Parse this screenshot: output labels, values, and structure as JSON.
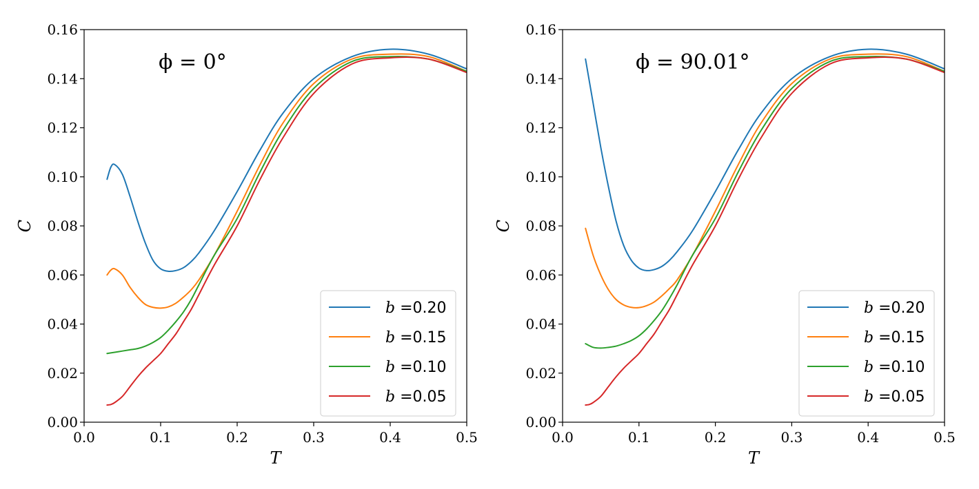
{
  "chart_data": [
    {
      "type": "line",
      "annotation": "ϕ = 0°",
      "xlabel": "T",
      "ylabel": "C",
      "xlim": [
        0.0,
        0.5
      ],
      "ylim": [
        0.0,
        0.16
      ],
      "xticks": [
        "0.0",
        "0.1",
        "0.2",
        "0.3",
        "0.4",
        "0.5"
      ],
      "yticks": [
        "0.00",
        "0.02",
        "0.04",
        "0.06",
        "0.08",
        "0.10",
        "0.12",
        "0.14",
        "0.16"
      ],
      "grid": false,
      "legend_position": "lower-right",
      "series": [
        {
          "name": "b =0.20",
          "var": "b",
          "label": " =0.20",
          "color": "#1f77b4",
          "x": [
            0.03,
            0.035,
            0.04,
            0.05,
            0.06,
            0.07,
            0.08,
            0.09,
            0.1,
            0.11,
            0.12,
            0.13,
            0.14,
            0.15,
            0.17,
            0.2,
            0.23,
            0.26,
            0.3,
            0.35,
            0.4,
            0.45,
            0.5
          ],
          "y": [
            0.099,
            0.104,
            0.105,
            0.101,
            0.092,
            0.082,
            0.073,
            0.066,
            0.0625,
            0.0615,
            0.0618,
            0.063,
            0.0655,
            0.069,
            0.078,
            0.094,
            0.111,
            0.126,
            0.14,
            0.149,
            0.152,
            0.15,
            0.144
          ]
        },
        {
          "name": "b =0.15",
          "var": "b",
          "label": " =0.15",
          "color": "#ff7f0e",
          "x": [
            0.03,
            0.035,
            0.04,
            0.05,
            0.06,
            0.07,
            0.08,
            0.09,
            0.1,
            0.11,
            0.12,
            0.13,
            0.14,
            0.15,
            0.17,
            0.2,
            0.23,
            0.26,
            0.3,
            0.35,
            0.4,
            0.45,
            0.5
          ],
          "y": [
            0.06,
            0.062,
            0.0625,
            0.06,
            0.055,
            0.051,
            0.048,
            0.0468,
            0.0465,
            0.047,
            0.0485,
            0.051,
            0.054,
            0.058,
            0.068,
            0.086,
            0.105,
            0.122,
            0.138,
            0.148,
            0.15,
            0.149,
            0.143
          ]
        },
        {
          "name": "b =0.10",
          "var": "b",
          "label": " =0.10",
          "color": "#2ca02c",
          "x": [
            0.03,
            0.04,
            0.05,
            0.06,
            0.07,
            0.08,
            0.09,
            0.1,
            0.11,
            0.12,
            0.13,
            0.14,
            0.15,
            0.17,
            0.2,
            0.23,
            0.26,
            0.3,
            0.35,
            0.4,
            0.45,
            0.5
          ],
          "y": [
            0.028,
            0.0285,
            0.029,
            0.0295,
            0.03,
            0.031,
            0.0325,
            0.0345,
            0.0375,
            0.041,
            0.045,
            0.05,
            0.056,
            0.068,
            0.083,
            0.102,
            0.119,
            0.136,
            0.147,
            0.149,
            0.148,
            0.143
          ]
        },
        {
          "name": "b =0.05",
          "var": "b",
          "label": " =0.05",
          "color": "#d62728",
          "x": [
            0.03,
            0.035,
            0.04,
            0.05,
            0.06,
            0.07,
            0.08,
            0.09,
            0.1,
            0.11,
            0.12,
            0.13,
            0.14,
            0.15,
            0.17,
            0.2,
            0.23,
            0.26,
            0.3,
            0.35,
            0.4,
            0.45,
            0.5
          ],
          "y": [
            0.007,
            0.0072,
            0.008,
            0.0105,
            0.0145,
            0.0185,
            0.022,
            0.025,
            0.028,
            0.032,
            0.036,
            0.041,
            0.046,
            0.052,
            0.064,
            0.08,
            0.099,
            0.116,
            0.134,
            0.146,
            0.1485,
            0.148,
            0.1425
          ]
        }
      ]
    },
    {
      "type": "line",
      "annotation": "ϕ = 90.01°",
      "xlabel": "T",
      "ylabel": "C",
      "xlim": [
        0.0,
        0.5
      ],
      "ylim": [
        0.0,
        0.16
      ],
      "xticks": [
        "0.0",
        "0.1",
        "0.2",
        "0.3",
        "0.4",
        "0.5"
      ],
      "yticks": [
        "0.00",
        "0.02",
        "0.04",
        "0.06",
        "0.08",
        "0.10",
        "0.12",
        "0.14",
        "0.16"
      ],
      "grid": false,
      "legend_position": "lower-right",
      "series": [
        {
          "name": "b =0.20",
          "var": "b",
          "label": " =0.20",
          "color": "#1f77b4",
          "x": [
            0.03,
            0.04,
            0.05,
            0.06,
            0.07,
            0.08,
            0.09,
            0.1,
            0.11,
            0.12,
            0.13,
            0.14,
            0.15,
            0.17,
            0.2,
            0.23,
            0.26,
            0.3,
            0.35,
            0.4,
            0.45,
            0.5
          ],
          "y": [
            0.148,
            0.13,
            0.112,
            0.096,
            0.082,
            0.072,
            0.066,
            0.0628,
            0.0618,
            0.0622,
            0.0635,
            0.066,
            0.0695,
            0.078,
            0.094,
            0.111,
            0.126,
            0.14,
            0.149,
            0.152,
            0.15,
            0.144
          ]
        },
        {
          "name": "b =0.15",
          "var": "b",
          "label": " =0.15",
          "color": "#ff7f0e",
          "x": [
            0.03,
            0.04,
            0.05,
            0.06,
            0.07,
            0.08,
            0.09,
            0.1,
            0.11,
            0.12,
            0.13,
            0.14,
            0.15,
            0.17,
            0.2,
            0.23,
            0.26,
            0.3,
            0.35,
            0.4,
            0.45,
            0.5
          ],
          "y": [
            0.079,
            0.068,
            0.06,
            0.054,
            0.05,
            0.0478,
            0.0468,
            0.0467,
            0.0475,
            0.049,
            0.0515,
            0.0545,
            0.058,
            0.068,
            0.086,
            0.105,
            0.122,
            0.138,
            0.148,
            0.15,
            0.149,
            0.143
          ]
        },
        {
          "name": "b =0.10",
          "var": "b",
          "label": " =0.10",
          "color": "#2ca02c",
          "x": [
            0.03,
            0.04,
            0.05,
            0.06,
            0.07,
            0.08,
            0.09,
            0.1,
            0.11,
            0.12,
            0.13,
            0.14,
            0.15,
            0.17,
            0.2,
            0.23,
            0.26,
            0.3,
            0.35,
            0.4,
            0.45,
            0.5
          ],
          "y": [
            0.032,
            0.0305,
            0.0302,
            0.0305,
            0.031,
            0.032,
            0.0333,
            0.0352,
            0.038,
            0.0415,
            0.0455,
            0.0505,
            0.056,
            0.068,
            0.083,
            0.102,
            0.119,
            0.136,
            0.147,
            0.149,
            0.148,
            0.143
          ]
        },
        {
          "name": "b =0.05",
          "var": "b",
          "label": " =0.05",
          "color": "#d62728",
          "x": [
            0.03,
            0.035,
            0.04,
            0.05,
            0.06,
            0.07,
            0.08,
            0.09,
            0.1,
            0.11,
            0.12,
            0.13,
            0.14,
            0.15,
            0.17,
            0.2,
            0.23,
            0.26,
            0.3,
            0.35,
            0.4,
            0.45,
            0.5
          ],
          "y": [
            0.007,
            0.0072,
            0.008,
            0.0105,
            0.0145,
            0.0185,
            0.022,
            0.025,
            0.028,
            0.032,
            0.036,
            0.041,
            0.046,
            0.052,
            0.064,
            0.08,
            0.099,
            0.116,
            0.134,
            0.146,
            0.1485,
            0.148,
            0.1425
          ]
        }
      ]
    }
  ]
}
